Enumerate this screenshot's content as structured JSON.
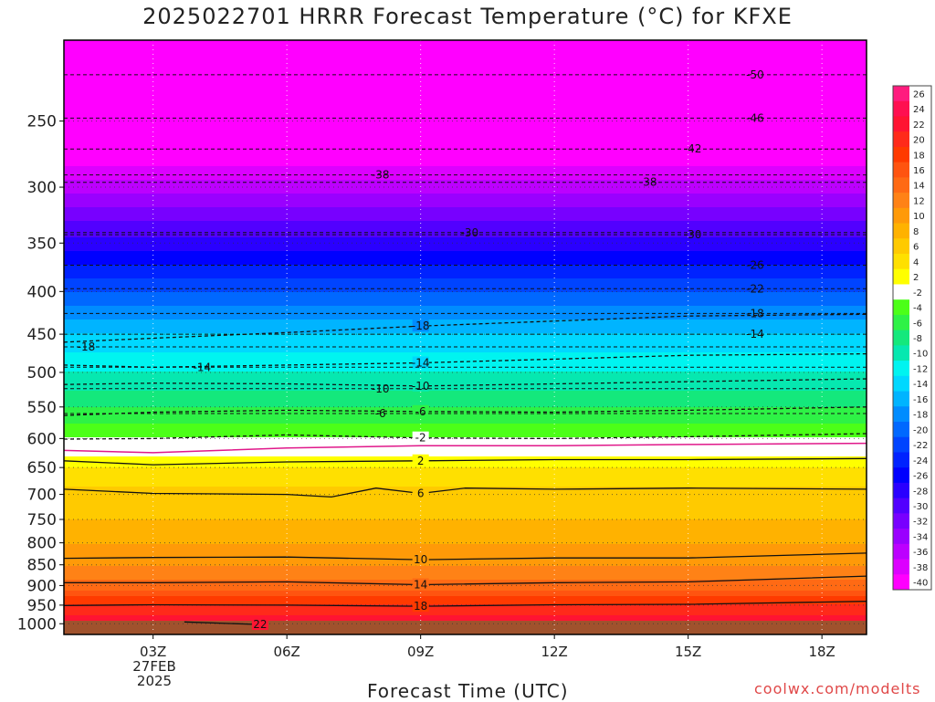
{
  "title": "2025022701 HRRR Forecast Temperature (°C) for KFXE",
  "xlabel": "Forecast Time (UTC)",
  "credit": "coolwx.com/modelts",
  "date_label": [
    "27FEB",
    "2025"
  ],
  "chart_data": {
    "type": "heatmap",
    "title": "2025022701 HRRR Forecast Temperature (°C) for KFXE",
    "xlabel": "Forecast Time (UTC)",
    "ylabel": "",
    "x_ticks": [
      {
        "hour": 3,
        "label": "03Z"
      },
      {
        "hour": 6,
        "label": "06Z"
      },
      {
        "hour": 9,
        "label": "09Z"
      },
      {
        "hour": 12,
        "label": "12Z"
      },
      {
        "hour": 15,
        "label": "15Z"
      },
      {
        "hour": 18,
        "label": "18Z"
      }
    ],
    "xlim": [
      1,
      19
    ],
    "y_ticks": [
      250,
      300,
      350,
      400,
      450,
      500,
      550,
      600,
      650,
      700,
      750,
      800,
      850,
      900,
      950,
      1000
    ],
    "ylim": [
      1030,
      200
    ],
    "y_scale": "log",
    "grid": true,
    "colorbar": {
      "labels": [
        "26",
        "24",
        "22",
        "20",
        "18",
        "16",
        "14",
        "12",
        "10",
        "8",
        "6",
        "4",
        "2",
        "-2",
        "-4",
        "-6",
        "-8",
        "-10",
        "-12",
        "-14",
        "-16",
        "-18",
        "-20",
        "-22",
        "-24",
        "-26",
        "-28",
        "-30",
        "-32",
        "-34",
        "-36",
        "-38",
        "-40"
      ],
      "colors": [
        "#ff1c7e",
        "#ff0f50",
        "#ff1432",
        "#ff2a1a",
        "#ff3a00",
        "#ff5410",
        "#ff6a14",
        "#ff8216",
        "#ff9a08",
        "#ffb200",
        "#ffca00",
        "#ffe000",
        "#ffff00",
        "#ffffff",
        "#4cff18",
        "#2ef246",
        "#14e87c",
        "#06e8b0",
        "#00f4f0",
        "#00d8ff",
        "#00b4ff",
        "#008cff",
        "#0068ff",
        "#0044ff",
        "#0022ff",
        "#0000ff",
        "#2a00ff",
        "#5200ff",
        "#7800ff",
        "#9a00ff",
        "#bc00ff",
        "#dc00ff",
        "#ff00ff"
      ]
    },
    "temperature_profile": [
      {
        "p": 1015,
        "t": 26
      },
      {
        "p": 1000,
        "t": 23
      },
      {
        "p": 950,
        "t": 19
      },
      {
        "p": 900,
        "t": 14
      },
      {
        "p": 850,
        "t": 11
      },
      {
        "p": 800,
        "t": 9
      },
      {
        "p": 750,
        "t": 7
      },
      {
        "p": 700,
        "t": 6
      },
      {
        "p": 650,
        "t": 3
      },
      {
        "p": 620,
        "t": 0
      },
      {
        "p": 600,
        "t": -3
      },
      {
        "p": 550,
        "t": -7
      },
      {
        "p": 500,
        "t": -11
      },
      {
        "p": 450,
        "t": -15
      },
      {
        "p": 400,
        "t": -21
      },
      {
        "p": 350,
        "t": -28
      },
      {
        "p": 300,
        "t": -36
      },
      {
        "p": 250,
        "t": -45
      },
      {
        "p": 200,
        "t": -52
      }
    ],
    "series": [
      {
        "name": "22",
        "points": [
          {
            "hour": 3.7,
            "p": 995
          },
          {
            "hour": 5.4,
            "p": 1002
          }
        ]
      },
      {
        "name": "18",
        "points": [
          {
            "hour": 1,
            "p": 951
          },
          {
            "hour": 3,
            "p": 949
          },
          {
            "hour": 6,
            "p": 950
          },
          {
            "hour": 9,
            "p": 953
          },
          {
            "hour": 12,
            "p": 949
          },
          {
            "hour": 15,
            "p": 948
          },
          {
            "hour": 19,
            "p": 940
          }
        ]
      },
      {
        "name": "14",
        "points": [
          {
            "hour": 1,
            "p": 893
          },
          {
            "hour": 3,
            "p": 893
          },
          {
            "hour": 6,
            "p": 891
          },
          {
            "hour": 9,
            "p": 898
          },
          {
            "hour": 12,
            "p": 893
          },
          {
            "hour": 15,
            "p": 891
          },
          {
            "hour": 19,
            "p": 877
          }
        ]
      },
      {
        "name": "10",
        "points": [
          {
            "hour": 1,
            "p": 835
          },
          {
            "hour": 3,
            "p": 833
          },
          {
            "hour": 6,
            "p": 832
          },
          {
            "hour": 9,
            "p": 838
          },
          {
            "hour": 12,
            "p": 834
          },
          {
            "hour": 15,
            "p": 834
          },
          {
            "hour": 19,
            "p": 823
          }
        ]
      },
      {
        "name": "6",
        "points": [
          {
            "hour": 1,
            "p": 690
          },
          {
            "hour": 3,
            "p": 698
          },
          {
            "hour": 6,
            "p": 700
          },
          {
            "hour": 7,
            "p": 705
          },
          {
            "hour": 8,
            "p": 688
          },
          {
            "hour": 9,
            "p": 698
          },
          {
            "hour": 10,
            "p": 688
          },
          {
            "hour": 12,
            "p": 690
          },
          {
            "hour": 15,
            "p": 688
          },
          {
            "hour": 19,
            "p": 690
          }
        ]
      },
      {
        "name": "2",
        "points": [
          {
            "hour": 1,
            "p": 638
          },
          {
            "hour": 3,
            "p": 645
          },
          {
            "hour": 6,
            "p": 640
          },
          {
            "hour": 9,
            "p": 638
          },
          {
            "hour": 12,
            "p": 636
          },
          {
            "hour": 15,
            "p": 636
          },
          {
            "hour": 19,
            "p": 634
          }
        ]
      },
      {
        "name": "-2",
        "points": [
          {
            "hour": 1,
            "p": 601
          },
          {
            "hour": 3,
            "p": 600
          },
          {
            "hour": 6,
            "p": 594
          },
          {
            "hour": 9,
            "p": 599
          },
          {
            "hour": 12,
            "p": 600
          },
          {
            "hour": 15,
            "p": 597
          },
          {
            "hour": 19,
            "p": 592
          }
        ]
      },
      {
        "name": "-6",
        "points": [
          {
            "hour": 1,
            "p": 563
          },
          {
            "hour": 3,
            "p": 558
          },
          {
            "hour": 6,
            "p": 555
          },
          {
            "hour": 9,
            "p": 557
          },
          {
            "hour": 12,
            "p": 558
          },
          {
            "hour": 15,
            "p": 555
          },
          {
            "hour": 19,
            "p": 550
          }
        ]
      },
      {
        "name": "-10",
        "points": [
          {
            "hour": 1,
            "p": 517
          },
          {
            "hour": 3,
            "p": 515
          },
          {
            "hour": 6,
            "p": 516
          },
          {
            "hour": 9,
            "p": 519
          },
          {
            "hour": 12,
            "p": 516
          },
          {
            "hour": 15,
            "p": 513
          },
          {
            "hour": 19,
            "p": 509
          }
        ]
      },
      {
        "name": "-14",
        "points": [
          {
            "hour": 1,
            "p": 490
          },
          {
            "hour": 3,
            "p": 493
          },
          {
            "hour": 6,
            "p": 490
          },
          {
            "hour": 9,
            "p": 487
          },
          {
            "hour": 12,
            "p": 482
          },
          {
            "hour": 15,
            "p": 477
          },
          {
            "hour": 19,
            "p": 475
          }
        ]
      },
      {
        "name": "-18",
        "points": [
          {
            "hour": 1,
            "p": 460
          },
          {
            "hour": 3,
            "p": 455
          },
          {
            "hour": 6,
            "p": 448
          },
          {
            "hour": 9,
            "p": 440
          },
          {
            "hour": 12,
            "p": 434
          },
          {
            "hour": 15,
            "p": 428
          },
          {
            "hour": 19,
            "p": 426
          }
        ]
      }
    ],
    "top_labels": [
      {
        "name": "-50",
        "hour": 16.5,
        "p": 220
      },
      {
        "name": "-46",
        "hour": 16.5,
        "p": 248
      },
      {
        "name": "-42",
        "hour": 15.1,
        "p": 270
      },
      {
        "name": "-38",
        "hour": 8.1,
        "p": 290
      },
      {
        "name": "-38",
        "hour": 14.1,
        "p": 296
      },
      {
        "name": "-30",
        "hour": 10.1,
        "p": 340
      },
      {
        "name": "-30",
        "hour": 15.1,
        "p": 342
      },
      {
        "name": "-26",
        "hour": 16.5,
        "p": 372
      },
      {
        "name": "-22",
        "hour": 16.5,
        "p": 397
      },
      {
        "name": "-18",
        "hour": 1.5,
        "p": 466
      },
      {
        "name": "-14",
        "hour": 16.5,
        "p": 450
      },
      {
        "name": "-14",
        "hour": 4.1,
        "p": 493
      },
      {
        "name": "-18",
        "hour": 16.5,
        "p": 425
      },
      {
        "name": "-10",
        "hour": 8.1,
        "p": 523
      },
      {
        "name": "-6",
        "hour": 8.1,
        "p": 560
      }
    ]
  }
}
